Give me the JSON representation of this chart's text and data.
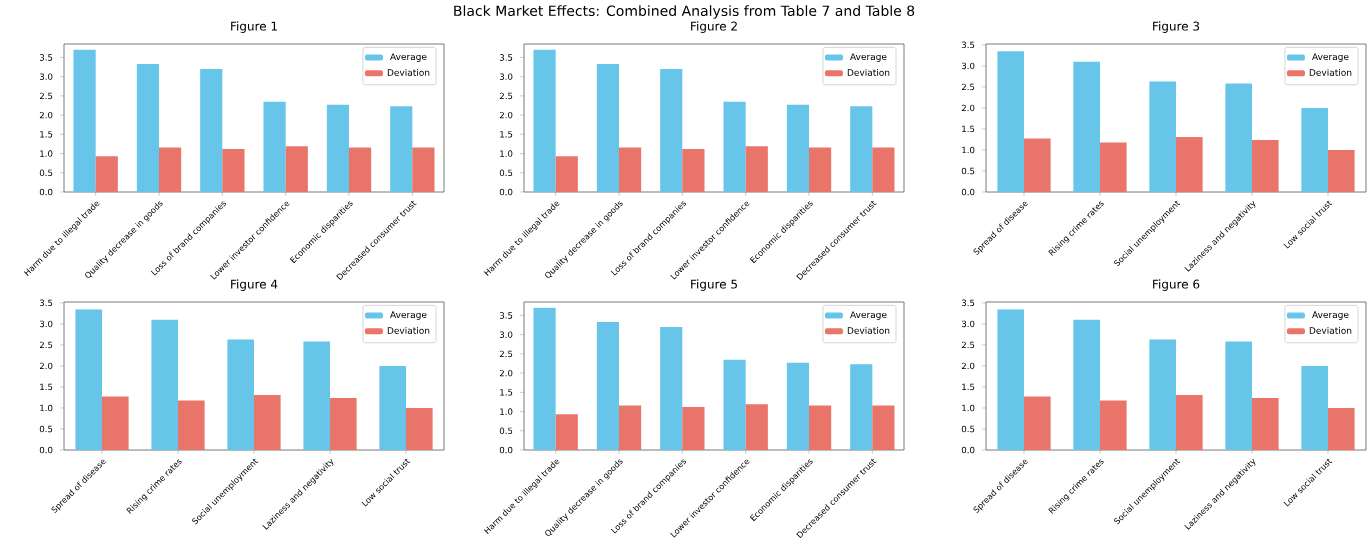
{
  "chart_data": [
    {
      "type": "bar",
      "title": "Figure 1",
      "annotations": [
        "Black Market Effects: Combined Analysis from Table 7 and Table 8"
      ],
      "categories": [
        "Harm due to illegal trade",
        "Quality decrease in goods",
        "Loss of brand companies",
        "Lower investor confidence",
        "Economic disparities",
        "Decreased consumer trust"
      ],
      "series": [
        {
          "name": "Average",
          "color": "#66c5e8",
          "values": [
            3.7,
            3.33,
            3.2,
            2.35,
            2.27,
            2.23
          ]
        },
        {
          "name": "Deviation",
          "color": "#e8746a",
          "values": [
            0.93,
            1.16,
            1.12,
            1.19,
            1.16,
            1.16
          ]
        }
      ],
      "ylim": [
        0,
        3.85
      ],
      "yticks": [
        {
          "value": 0,
          "label": "0.0"
        },
        {
          "value": 0.5,
          "label": "0.5"
        },
        {
          "value": 1,
          "label": "1.0"
        },
        {
          "value": 1.5,
          "label": "1.5"
        },
        {
          "value": 2,
          "label": "2.0"
        },
        {
          "value": 2.5,
          "label": "2.5"
        },
        {
          "value": 3,
          "label": "3.0"
        },
        {
          "value": 3.5,
          "label": "3.5"
        }
      ],
      "legend": "top right"
    },
    {
      "type": "bar",
      "title": "Figure 2",
      "categories": [
        "Harm due to illegal trade",
        "Quality decrease in goods",
        "Loss of brand companies",
        "Lower investor confidence",
        "Economic disparities",
        "Decreased consumer trust"
      ],
      "series": [
        {
          "name": "Average",
          "color": "#66c5e8",
          "values": [
            3.7,
            3.33,
            3.2,
            2.35,
            2.27,
            2.23
          ]
        },
        {
          "name": "Deviation",
          "color": "#e8746a",
          "values": [
            0.93,
            1.16,
            1.12,
            1.19,
            1.16,
            1.16
          ]
        }
      ],
      "ylim": [
        0,
        3.85
      ],
      "yticks": [
        {
          "value": 0,
          "label": "0.0"
        },
        {
          "value": 0.5,
          "label": "0.5"
        },
        {
          "value": 1,
          "label": "1.0"
        },
        {
          "value": 1.5,
          "label": "1.5"
        },
        {
          "value": 2,
          "label": "2.0"
        },
        {
          "value": 2.5,
          "label": "2.5"
        },
        {
          "value": 3,
          "label": "3.0"
        },
        {
          "value": 3.5,
          "label": "3.5"
        }
      ],
      "legend": "top right"
    },
    {
      "type": "bar",
      "title": "Figure 3",
      "categories": [
        "Spread of disease",
        "Rising crime rates",
        "Social unemployment",
        "Laziness and negativity",
        "Low social trust"
      ],
      "series": [
        {
          "name": "Average",
          "color": "#66c5e8",
          "values": [
            3.35,
            3.1,
            2.63,
            2.58,
            2.0
          ]
        },
        {
          "name": "Deviation",
          "color": "#e8746a",
          "values": [
            1.27,
            1.18,
            1.31,
            1.24,
            1.0
          ]
        }
      ],
      "ylim": [
        0,
        3.52
      ],
      "yticks": [
        {
          "value": 0,
          "label": "0.0"
        },
        {
          "value": 0.5,
          "label": "0.5"
        },
        {
          "value": 1,
          "label": "1.0"
        },
        {
          "value": 1.5,
          "label": "1.5"
        },
        {
          "value": 2,
          "label": "2.0"
        },
        {
          "value": 2.5,
          "label": "2.5"
        },
        {
          "value": 3,
          "label": "3.0"
        },
        {
          "value": 3.5,
          "label": "3.5"
        }
      ],
      "legend": "top right"
    },
    {
      "type": "bar",
      "title": "Figure 4",
      "categories": [
        "Spread of disease",
        "Rising crime rates",
        "Social unemployment",
        "Laziness and negativity",
        "Low social trust"
      ],
      "series": [
        {
          "name": "Average",
          "color": "#66c5e8",
          "values": [
            3.35,
            3.1,
            2.63,
            2.58,
            2.0
          ]
        },
        {
          "name": "Deviation",
          "color": "#e8746a",
          "values": [
            1.27,
            1.18,
            1.31,
            1.24,
            1.0
          ]
        }
      ],
      "ylim": [
        0,
        3.52
      ],
      "yticks": [
        {
          "value": 0,
          "label": "0.0"
        },
        {
          "value": 0.5,
          "label": "0.5"
        },
        {
          "value": 1,
          "label": "1.0"
        },
        {
          "value": 1.5,
          "label": "1.5"
        },
        {
          "value": 2,
          "label": "2.0"
        },
        {
          "value": 2.5,
          "label": "2.5"
        },
        {
          "value": 3,
          "label": "3.0"
        },
        {
          "value": 3.5,
          "label": "3.5"
        }
      ],
      "legend": "top right"
    },
    {
      "type": "bar",
      "title": "Figure 5",
      "categories": [
        "Harm due to illegal trade",
        "Quality decrease in goods",
        "Loss of brand companies",
        "Lower investor confidence",
        "Economic disparities",
        "Decreased consumer trust"
      ],
      "series": [
        {
          "name": "Average",
          "color": "#66c5e8",
          "values": [
            3.7,
            3.33,
            3.2,
            2.35,
            2.27,
            2.23
          ]
        },
        {
          "name": "Deviation",
          "color": "#e8746a",
          "values": [
            0.93,
            1.16,
            1.12,
            1.19,
            1.16,
            1.16
          ]
        }
      ],
      "ylim": [
        0,
        3.85
      ],
      "yticks": [
        {
          "value": 0,
          "label": "0.0"
        },
        {
          "value": 0.5,
          "label": "0.5"
        },
        {
          "value": 1,
          "label": "1.0"
        },
        {
          "value": 1.5,
          "label": "1.5"
        },
        {
          "value": 2,
          "label": "2.0"
        },
        {
          "value": 2.5,
          "label": "2.5"
        },
        {
          "value": 3,
          "label": "3.0"
        },
        {
          "value": 3.5,
          "label": "3.5"
        }
      ],
      "legend": "top right"
    },
    {
      "type": "bar",
      "title": "Figure 6",
      "categories": [
        "Spread of disease",
        "Rising crime rates",
        "Social unemployment",
        "Laziness and negativity",
        "Low social trust"
      ],
      "series": [
        {
          "name": "Average",
          "color": "#66c5e8",
          "values": [
            3.35,
            3.1,
            2.63,
            2.58,
            2.0
          ]
        },
        {
          "name": "Deviation",
          "color": "#e8746a",
          "values": [
            1.27,
            1.18,
            1.31,
            1.24,
            1.0
          ]
        }
      ],
      "ylim": [
        0,
        3.52
      ],
      "yticks": [
        {
          "value": 0,
          "label": "0.0"
        },
        {
          "value": 0.5,
          "label": "0.5"
        },
        {
          "value": 1,
          "label": "1.0"
        },
        {
          "value": 1.5,
          "label": "1.5"
        },
        {
          "value": 2,
          "label": "2.0"
        },
        {
          "value": 2.5,
          "label": "2.5"
        },
        {
          "value": 3,
          "label": "3.0"
        },
        {
          "value": 3.5,
          "label": "3.5"
        }
      ],
      "legend": "top right"
    }
  ]
}
